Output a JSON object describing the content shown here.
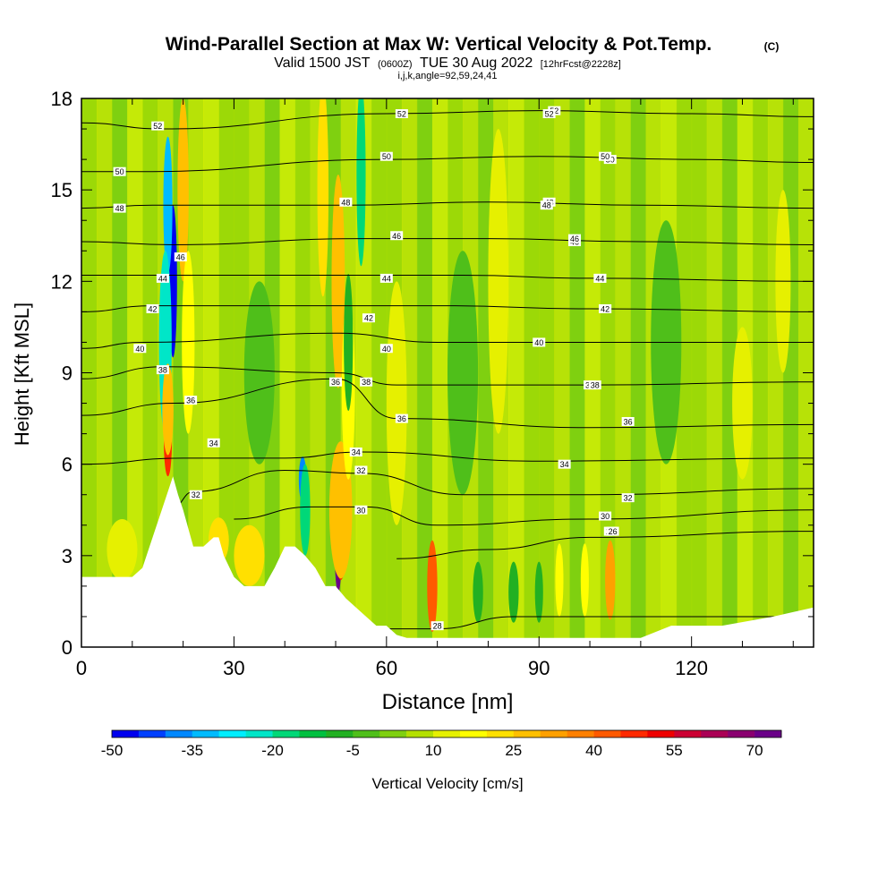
{
  "chart_data": {
    "type": "heatmap",
    "title": "Wind-Parallel Section at Max W: Vertical Velocity & Pot.Temp.",
    "title_mark": "(C)",
    "subtitle": {
      "valid_prefix": "Valid 1500 JST",
      "utc": "(0600Z)",
      "date": "TUE 30 Aug 2022",
      "forecast": "[12hrFcst@2228z]"
    },
    "params_line": "i,j,k,angle=92,59,24,41",
    "xlabel": "Distance [nm]",
    "ylabel": "Height [Kft MSL]",
    "xlim": [
      0,
      144
    ],
    "ylim": [
      0,
      18
    ],
    "x_ticks": [
      "0",
      "30",
      "60",
      "90",
      "120"
    ],
    "x_tick_values": [
      0,
      30,
      60,
      90,
      120
    ],
    "y_ticks": [
      "0",
      "3",
      "6",
      "9",
      "12",
      "15",
      "18"
    ],
    "y_tick_values": [
      0,
      3,
      6,
      9,
      12,
      15,
      18
    ],
    "terrain": {
      "x": [
        0,
        6,
        10,
        12,
        14,
        16,
        18,
        19,
        20,
        21,
        22,
        23,
        24,
        26,
        27,
        28,
        30,
        32,
        34,
        36,
        37,
        38,
        40,
        42,
        44,
        46,
        48,
        50,
        52,
        54,
        56,
        58,
        60,
        62,
        64,
        66,
        70,
        80,
        100,
        110,
        116,
        126,
        136,
        144
      ],
      "y": [
        2.3,
        2.3,
        2.3,
        2.6,
        3.6,
        4.6,
        5.6,
        5.0,
        4.5,
        3.9,
        3.3,
        3.3,
        3.3,
        3.6,
        3.6,
        3.0,
        2.3,
        2.0,
        2.0,
        2.0,
        2.3,
        2.6,
        3.3,
        3.3,
        3.0,
        2.6,
        2.0,
        2.0,
        1.6,
        1.3,
        1.0,
        0.7,
        0.7,
        0.4,
        0.3,
        0.3,
        0.3,
        0.3,
        0.3,
        0.3,
        0.7,
        0.7,
        1.0,
        1.3
      ]
    },
    "velocity_cells": [
      {
        "x": 18.0,
        "y": 12.0,
        "w": 1.6,
        "h": 5.0,
        "v": -50
      },
      {
        "x": 17.0,
        "y": 14.5,
        "w": 1.8,
        "h": 4.5,
        "v": -35
      },
      {
        "x": 16.5,
        "y": 10.0,
        "w": 2.5,
        "h": 6.0,
        "v": -25
      },
      {
        "x": 17.0,
        "y": 6.8,
        "w": 1.6,
        "h": 2.4,
        "v": 45
      },
      {
        "x": 17.0,
        "y": 7.8,
        "w": 2.2,
        "h": 3.0,
        "v": 25
      },
      {
        "x": 20.0,
        "y": 15.0,
        "w": 2.2,
        "h": 6.0,
        "v": 25
      },
      {
        "x": 21.0,
        "y": 10.0,
        "w": 2.5,
        "h": 6.0,
        "v": 15
      },
      {
        "x": 43.5,
        "y": 5.5,
        "w": 1.5,
        "h": 1.5,
        "v": -40
      },
      {
        "x": 44.0,
        "y": 4.5,
        "w": 2.0,
        "h": 3.0,
        "v": -20
      },
      {
        "x": 50.5,
        "y": 3.3,
        "w": 1.4,
        "h": 3.0,
        "v": 75
      },
      {
        "x": 51.0,
        "y": 4.0,
        "w": 2.6,
        "h": 3.6,
        "v": 45
      },
      {
        "x": 51.0,
        "y": 4.5,
        "w": 4.5,
        "h": 4.5,
        "v": 25
      },
      {
        "x": 47.5,
        "y": 15.0,
        "w": 2.2,
        "h": 7.0,
        "v": 20
      },
      {
        "x": 50.5,
        "y": 12.0,
        "w": 2.6,
        "h": 7.0,
        "v": 25
      },
      {
        "x": 52.5,
        "y": 8.5,
        "w": 2.6,
        "h": 6.0,
        "v": 15
      },
      {
        "x": 55.0,
        "y": 15.5,
        "w": 1.8,
        "h": 6.0,
        "v": -20
      },
      {
        "x": 52.5,
        "y": 10.0,
        "w": 1.8,
        "h": 4.5,
        "v": -10
      },
      {
        "x": 69.0,
        "y": 2.0,
        "w": 2.0,
        "h": 3.0,
        "v": 40
      },
      {
        "x": 33.0,
        "y": 3.0,
        "w": 6.0,
        "h": 2.0,
        "v": 20
      },
      {
        "x": 27.0,
        "y": 3.5,
        "w": 4.0,
        "h": 1.5,
        "v": 20
      },
      {
        "x": 62.0,
        "y": 8.0,
        "w": 4.0,
        "h": 8.0,
        "v": 10
      },
      {
        "x": 82.0,
        "y": 12.0,
        "w": 4.0,
        "h": 10.0,
        "v": 10
      },
      {
        "x": 104.0,
        "y": 2.2,
        "w": 2.0,
        "h": 2.6,
        "v": 30
      },
      {
        "x": 99.0,
        "y": 2.2,
        "w": 1.6,
        "h": 2.4,
        "v": 15
      },
      {
        "x": 94.0,
        "y": 2.2,
        "w": 1.6,
        "h": 2.4,
        "v": 15
      },
      {
        "x": 130.0,
        "y": 8.0,
        "w": 4.0,
        "h": 5.0,
        "v": 10
      },
      {
        "x": 138.0,
        "y": 12.0,
        "w": 3.0,
        "h": 6.0,
        "v": 10
      },
      {
        "x": 78.0,
        "y": 1.8,
        "w": 2.0,
        "h": 2.0,
        "v": -8
      },
      {
        "x": 85.0,
        "y": 1.8,
        "w": 2.0,
        "h": 2.0,
        "v": -8
      },
      {
        "x": 90.0,
        "y": 1.8,
        "w": 1.6,
        "h": 2.0,
        "v": -8
      },
      {
        "x": 35.0,
        "y": 9.0,
        "w": 6.0,
        "h": 6.0,
        "v": -5
      },
      {
        "x": 75.0,
        "y": 9.0,
        "w": 6.0,
        "h": 8.0,
        "v": -5
      },
      {
        "x": 115.0,
        "y": 10.0,
        "w": 6.0,
        "h": 8.0,
        "v": -5
      },
      {
        "x": 8.0,
        "y": 3.2,
        "w": 6.0,
        "h": 2.0,
        "v": 10
      }
    ],
    "isentropes": [
      {
        "level": 26,
        "label": "26",
        "points": [
          [
            62,
            2.9
          ],
          [
            80,
            3.2
          ],
          [
            100,
            3.6
          ],
          [
            144,
            3.8
          ]
        ],
        "label_at": [
          104,
          3.8
        ]
      },
      {
        "level": 28,
        "label": "28",
        "points": [
          [
            56,
            0.6
          ],
          [
            70,
            0.6
          ],
          [
            85,
            1.0
          ],
          [
            144,
            1.0
          ]
        ],
        "label_at": [
          70,
          0.7
        ]
      },
      {
        "level": 30,
        "label": "30",
        "points": [
          [
            30,
            4.2
          ],
          [
            45,
            4.6
          ],
          [
            56,
            4.6
          ],
          [
            70,
            4.0
          ],
          [
            100,
            4.2
          ],
          [
            144,
            4.5
          ]
        ],
        "label_at": [
          55,
          4.5
        ]
      },
      {
        "level": 32,
        "label": "32",
        "points": [
          [
            18,
            4.6
          ],
          [
            22,
            5.1
          ],
          [
            40,
            5.8
          ],
          [
            55,
            5.7
          ],
          [
            75,
            5.0
          ],
          [
            100,
            5.0
          ],
          [
            144,
            5.2
          ]
        ],
        "label_at": [
          55,
          5.8
        ]
      },
      {
        "level": 34,
        "label": "34",
        "points": [
          [
            0,
            6.0
          ],
          [
            20,
            6.2
          ],
          [
            40,
            6.2
          ],
          [
            55,
            6.4
          ],
          [
            90,
            6.1
          ],
          [
            144,
            6.2
          ]
        ],
        "label_at": [
          54,
          6.4
        ]
      },
      {
        "level": 36,
        "label": "36",
        "points": [
          [
            0,
            7.6
          ],
          [
            18,
            8.0
          ],
          [
            50,
            8.8
          ],
          [
            62,
            7.5
          ],
          [
            100,
            7.2
          ],
          [
            144,
            7.3
          ]
        ],
        "label_at": [
          63,
          7.5
        ]
      },
      {
        "level": 38,
        "label": "38",
        "points": [
          [
            0,
            8.8
          ],
          [
            16,
            9.2
          ],
          [
            50,
            9.0
          ],
          [
            62,
            8.6
          ],
          [
            100,
            8.6
          ],
          [
            144,
            8.7
          ]
        ],
        "label_at": [
          100,
          8.6
        ]
      },
      {
        "level": 40,
        "label": "40",
        "points": [
          [
            0,
            9.8
          ],
          [
            12,
            10.0
          ],
          [
            50,
            10.3
          ],
          [
            70,
            10.0
          ],
          [
            100,
            10.0
          ],
          [
            144,
            10.0
          ]
        ],
        "label_at": [
          90,
          10.0
        ]
      },
      {
        "level": 42,
        "label": "42",
        "points": [
          [
            0,
            11.0
          ],
          [
            14,
            11.2
          ],
          [
            52,
            11.2
          ],
          [
            70,
            11.2
          ],
          [
            100,
            11.1
          ],
          [
            144,
            11.0
          ]
        ],
        "label_at": [
          103,
          11.1
        ]
      },
      {
        "level": 44,
        "label": "44",
        "points": [
          [
            0,
            12.2
          ],
          [
            16,
            12.2
          ],
          [
            50,
            12.2
          ],
          [
            75,
            12.2
          ],
          [
            100,
            12.1
          ],
          [
            144,
            12.0
          ]
        ],
        "label_at": [
          102,
          12.1
        ]
      },
      {
        "level": 46,
        "label": "46",
        "points": [
          [
            0,
            13.3
          ],
          [
            18,
            13.2
          ],
          [
            55,
            13.4
          ],
          [
            80,
            13.4
          ],
          [
            110,
            13.3
          ],
          [
            144,
            13.2
          ]
        ],
        "label_at": [
          97,
          13.3
        ]
      },
      {
        "level": 48,
        "label": "48",
        "points": [
          [
            0,
            14.4
          ],
          [
            14,
            14.5
          ],
          [
            52,
            14.5
          ],
          [
            80,
            14.6
          ],
          [
            110,
            14.5
          ],
          [
            144,
            14.4
          ]
        ],
        "label_at": [
          92,
          14.6
        ]
      },
      {
        "level": 50,
        "label": "50",
        "points": [
          [
            0,
            15.6
          ],
          [
            12,
            15.6
          ],
          [
            60,
            16.0
          ],
          [
            90,
            16.1
          ],
          [
            120,
            16.0
          ],
          [
            144,
            15.9
          ]
        ],
        "label_at": [
          104,
          16.0
        ]
      },
      {
        "level": 52,
        "label": "52",
        "points": [
          [
            0,
            17.2
          ],
          [
            16,
            17.0
          ],
          [
            60,
            17.5
          ],
          [
            90,
            17.6
          ],
          [
            120,
            17.5
          ],
          [
            144,
            17.4
          ]
        ],
        "label_at": [
          93,
          17.6
        ]
      }
    ],
    "extra_contour_labels": [
      {
        "label": "50",
        "x": 7.5,
        "y": 15.6
      },
      {
        "label": "48",
        "x": 7.5,
        "y": 14.4
      },
      {
        "label": "42",
        "x": 14.0,
        "y": 11.1
      },
      {
        "label": "40",
        "x": 11.5,
        "y": 9.8
      },
      {
        "label": "38",
        "x": 16.0,
        "y": 9.1
      },
      {
        "label": "36",
        "x": 21.5,
        "y": 8.1
      },
      {
        "label": "34",
        "x": 26.0,
        "y": 6.7
      },
      {
        "label": "32",
        "x": 22.5,
        "y": 5.0
      },
      {
        "label": "52",
        "x": 15.0,
        "y": 17.1
      },
      {
        "label": "46",
        "x": 19.5,
        "y": 12.8
      },
      {
        "label": "44",
        "x": 16.0,
        "y": 12.1
      },
      {
        "label": "36",
        "x": 50.0,
        "y": 8.7
      },
      {
        "label": "38",
        "x": 56.0,
        "y": 8.7
      },
      {
        "label": "40",
        "x": 60.0,
        "y": 9.8
      },
      {
        "label": "42",
        "x": 56.5,
        "y": 10.8
      },
      {
        "label": "44",
        "x": 60.0,
        "y": 12.1
      },
      {
        "label": "46",
        "x": 62.0,
        "y": 13.5
      },
      {
        "label": "48",
        "x": 52.0,
        "y": 14.6
      },
      {
        "label": "50",
        "x": 60.0,
        "y": 16.1
      },
      {
        "label": "52",
        "x": 63.0,
        "y": 17.5
      },
      {
        "label": "52",
        "x": 92.0,
        "y": 17.5
      },
      {
        "label": "50",
        "x": 103.0,
        "y": 16.1
      },
      {
        "label": "48",
        "x": 91.5,
        "y": 14.5
      },
      {
        "label": "46",
        "x": 97.0,
        "y": 13.4
      },
      {
        "label": "44",
        "x": 102.0,
        "y": 12.1
      },
      {
        "label": "42",
        "x": 103.0,
        "y": 11.1
      },
      {
        "label": "38",
        "x": 101.0,
        "y": 8.6
      },
      {
        "label": "36",
        "x": 107.5,
        "y": 7.4
      },
      {
        "label": "34",
        "x": 95.0,
        "y": 6.0
      },
      {
        "label": "32",
        "x": 107.5,
        "y": 4.9
      },
      {
        "label": "30",
        "x": 103.0,
        "y": 4.3
      },
      {
        "label": "26",
        "x": 104.5,
        "y": 3.8
      }
    ],
    "colorbar": {
      "label": "Vertical Velocity [cm/s]",
      "min": -50,
      "max": 75,
      "step": 5,
      "tick_labels": [
        "-50",
        "-35",
        "-20",
        "-5",
        "10",
        "25",
        "40",
        "55",
        "70"
      ],
      "tick_values": [
        -50,
        -35,
        -20,
        -5,
        10,
        25,
        40,
        55,
        70
      ],
      "colors": [
        "#0000ee",
        "#0040ff",
        "#0088ff",
        "#00bbff",
        "#00eeff",
        "#00e6c8",
        "#00d878",
        "#00c040",
        "#22b022",
        "#4fbf1a",
        "#7fd010",
        "#b4e000",
        "#e6f000",
        "#ffff00",
        "#ffe000",
        "#ffc000",
        "#ffa000",
        "#ff8000",
        "#ff5a00",
        "#ff2a00",
        "#ee0000",
        "#cc0033",
        "#aa0055",
        "#8a0070",
        "#6a0088"
      ]
    },
    "background_level": 0
  }
}
